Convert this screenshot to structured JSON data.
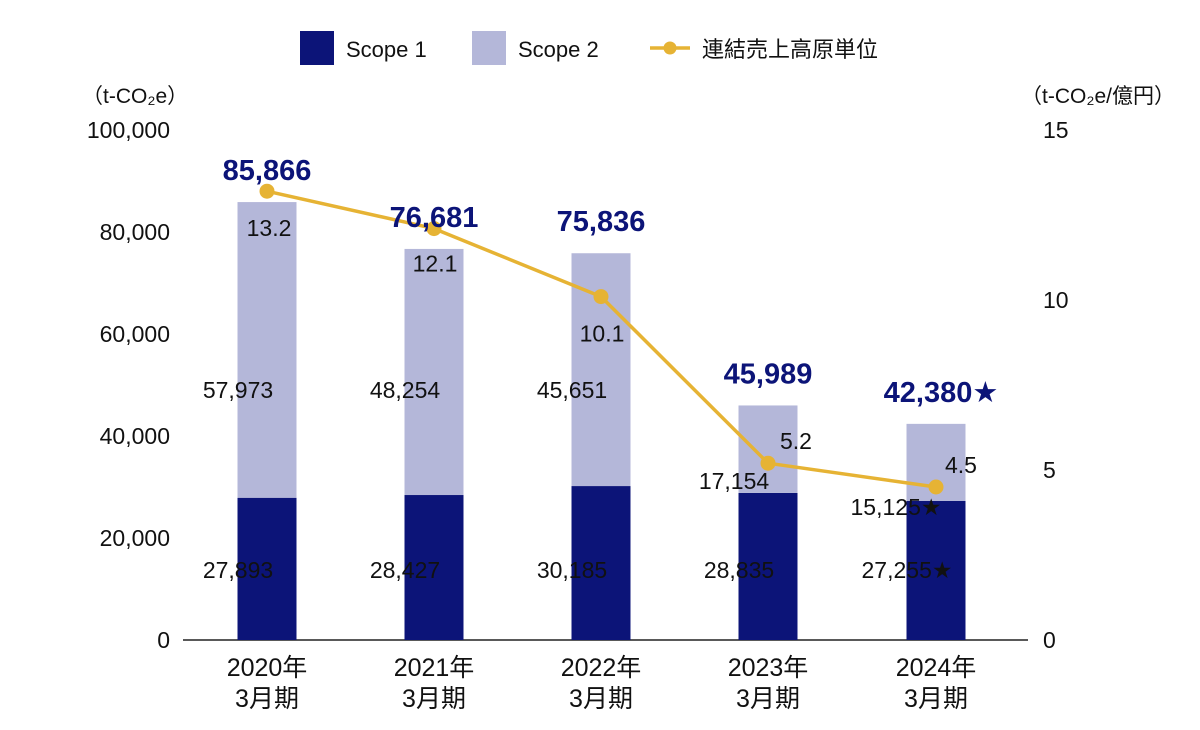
{
  "colors": {
    "scope1": "#0c1478",
    "scope2": "#b4b7d9",
    "line": "#e6b334",
    "total_text": "#0c1478",
    "axis": "#222222"
  },
  "legend": {
    "scope1": "Scope 1",
    "scope2": "Scope 2",
    "line": "連結売上高原単位"
  },
  "chart_data": {
    "type": "bar",
    "stacked": true,
    "categories": [
      [
        "2020年",
        "3月期"
      ],
      [
        "2021年",
        "3月期"
      ],
      [
        "2022年",
        "3月期"
      ],
      [
        "2023年",
        "3月期"
      ],
      [
        "2024年",
        "3月期"
      ]
    ],
    "series": [
      {
        "name": "Scope 1",
        "values": [
          27893,
          28427,
          30185,
          28835,
          27255
        ],
        "labels": [
          "27,893",
          "28,427",
          "30,185",
          "28,835",
          "27,255★"
        ]
      },
      {
        "name": "Scope 2",
        "values": [
          57973,
          48254,
          45651,
          17154,
          15125
        ],
        "labels": [
          "57,973",
          "48,254",
          "45,651",
          "17,154",
          "15,125★"
        ]
      }
    ],
    "totals": {
      "values": [
        85866,
        76681,
        75836,
        45989,
        42380
      ],
      "labels": [
        "85,866",
        "76,681",
        "75,836",
        "45,989",
        "42,380★"
      ]
    },
    "line_series": {
      "name": "連結売上高原単位",
      "axis": "right",
      "values": [
        13.2,
        12.1,
        10.1,
        5.2,
        4.5
      ],
      "labels": [
        "13.2",
        "12.1",
        "10.1",
        "5.2",
        "4.5"
      ]
    },
    "left_axis": {
      "unit": "（t-CO₂e）",
      "ylim": [
        0,
        100000
      ],
      "ticks": [
        "0",
        "20,000",
        "40,000",
        "60,000",
        "80,000",
        "100,000"
      ]
    },
    "right_axis": {
      "unit": "（t-CO₂e/億円）",
      "ylim": [
        0,
        15
      ],
      "ticks": [
        "0",
        "5",
        "10",
        "15"
      ]
    },
    "grid": false,
    "legend_position": "top-center"
  }
}
